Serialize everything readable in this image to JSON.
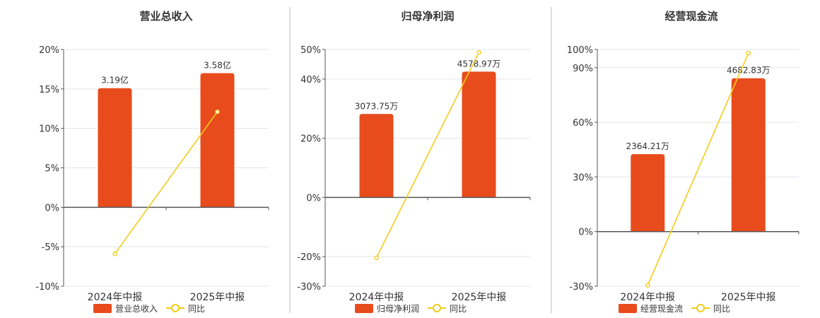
{
  "colors": {
    "bar": "#e84c1c",
    "line": "#f2cd1a",
    "axis": "#555555",
    "grid": "#e3e5ee",
    "divider": "#bbbbbb",
    "title": "#333333",
    "tick": "#333333"
  },
  "chart_data": [
    {
      "type": "bar",
      "title": "营业总收入",
      "categories": [
        "2024年中报",
        "2025年中报"
      ],
      "series": [
        {
          "name": "营业总收入",
          "kind": "bar",
          "labels": [
            "3.19亿",
            "3.58亿"
          ],
          "values": [
            15.1,
            17.0
          ]
        },
        {
          "name": "同比",
          "kind": "line",
          "values": [
            -5.9,
            12.1
          ]
        }
      ],
      "yticks": [
        "20%",
        "15%",
        "10%",
        "5%",
        "0%",
        "-5%",
        "-10%"
      ],
      "ylim": [
        -10,
        20
      ],
      "grid": true,
      "legend": "bottom"
    },
    {
      "type": "bar",
      "title": "归母净利润",
      "categories": [
        "2024年中报",
        "2025年中报"
      ],
      "series": [
        {
          "name": "归母净利润",
          "kind": "bar",
          "labels": [
            "3073.75万",
            "4578.97万"
          ],
          "values": [
            28.2,
            42.5
          ]
        },
        {
          "name": "同比",
          "kind": "line",
          "values": [
            -20.4,
            49.0
          ]
        }
      ],
      "yticks": [
        "50%",
        "40%",
        "20%",
        "0%",
        "-20%",
        "-30%"
      ],
      "ylim": [
        -30,
        50
      ],
      "grid": true,
      "legend": "bottom"
    },
    {
      "type": "bar",
      "title": "经营现金流",
      "categories": [
        "2024年中报",
        "2025年中报"
      ],
      "series": [
        {
          "name": "经营现金流",
          "kind": "bar",
          "labels": [
            "2364.21万",
            "4682.83万"
          ],
          "values": [
            42.5,
            84.2
          ]
        },
        {
          "name": "同比",
          "kind": "line",
          "values": [
            -29.5,
            98.0
          ]
        }
      ],
      "yticks": [
        "100%",
        "90%",
        "60%",
        "30%",
        "0%",
        "-30%"
      ],
      "ylim": [
        -30,
        100
      ],
      "grid": true,
      "legend": "bottom"
    }
  ]
}
